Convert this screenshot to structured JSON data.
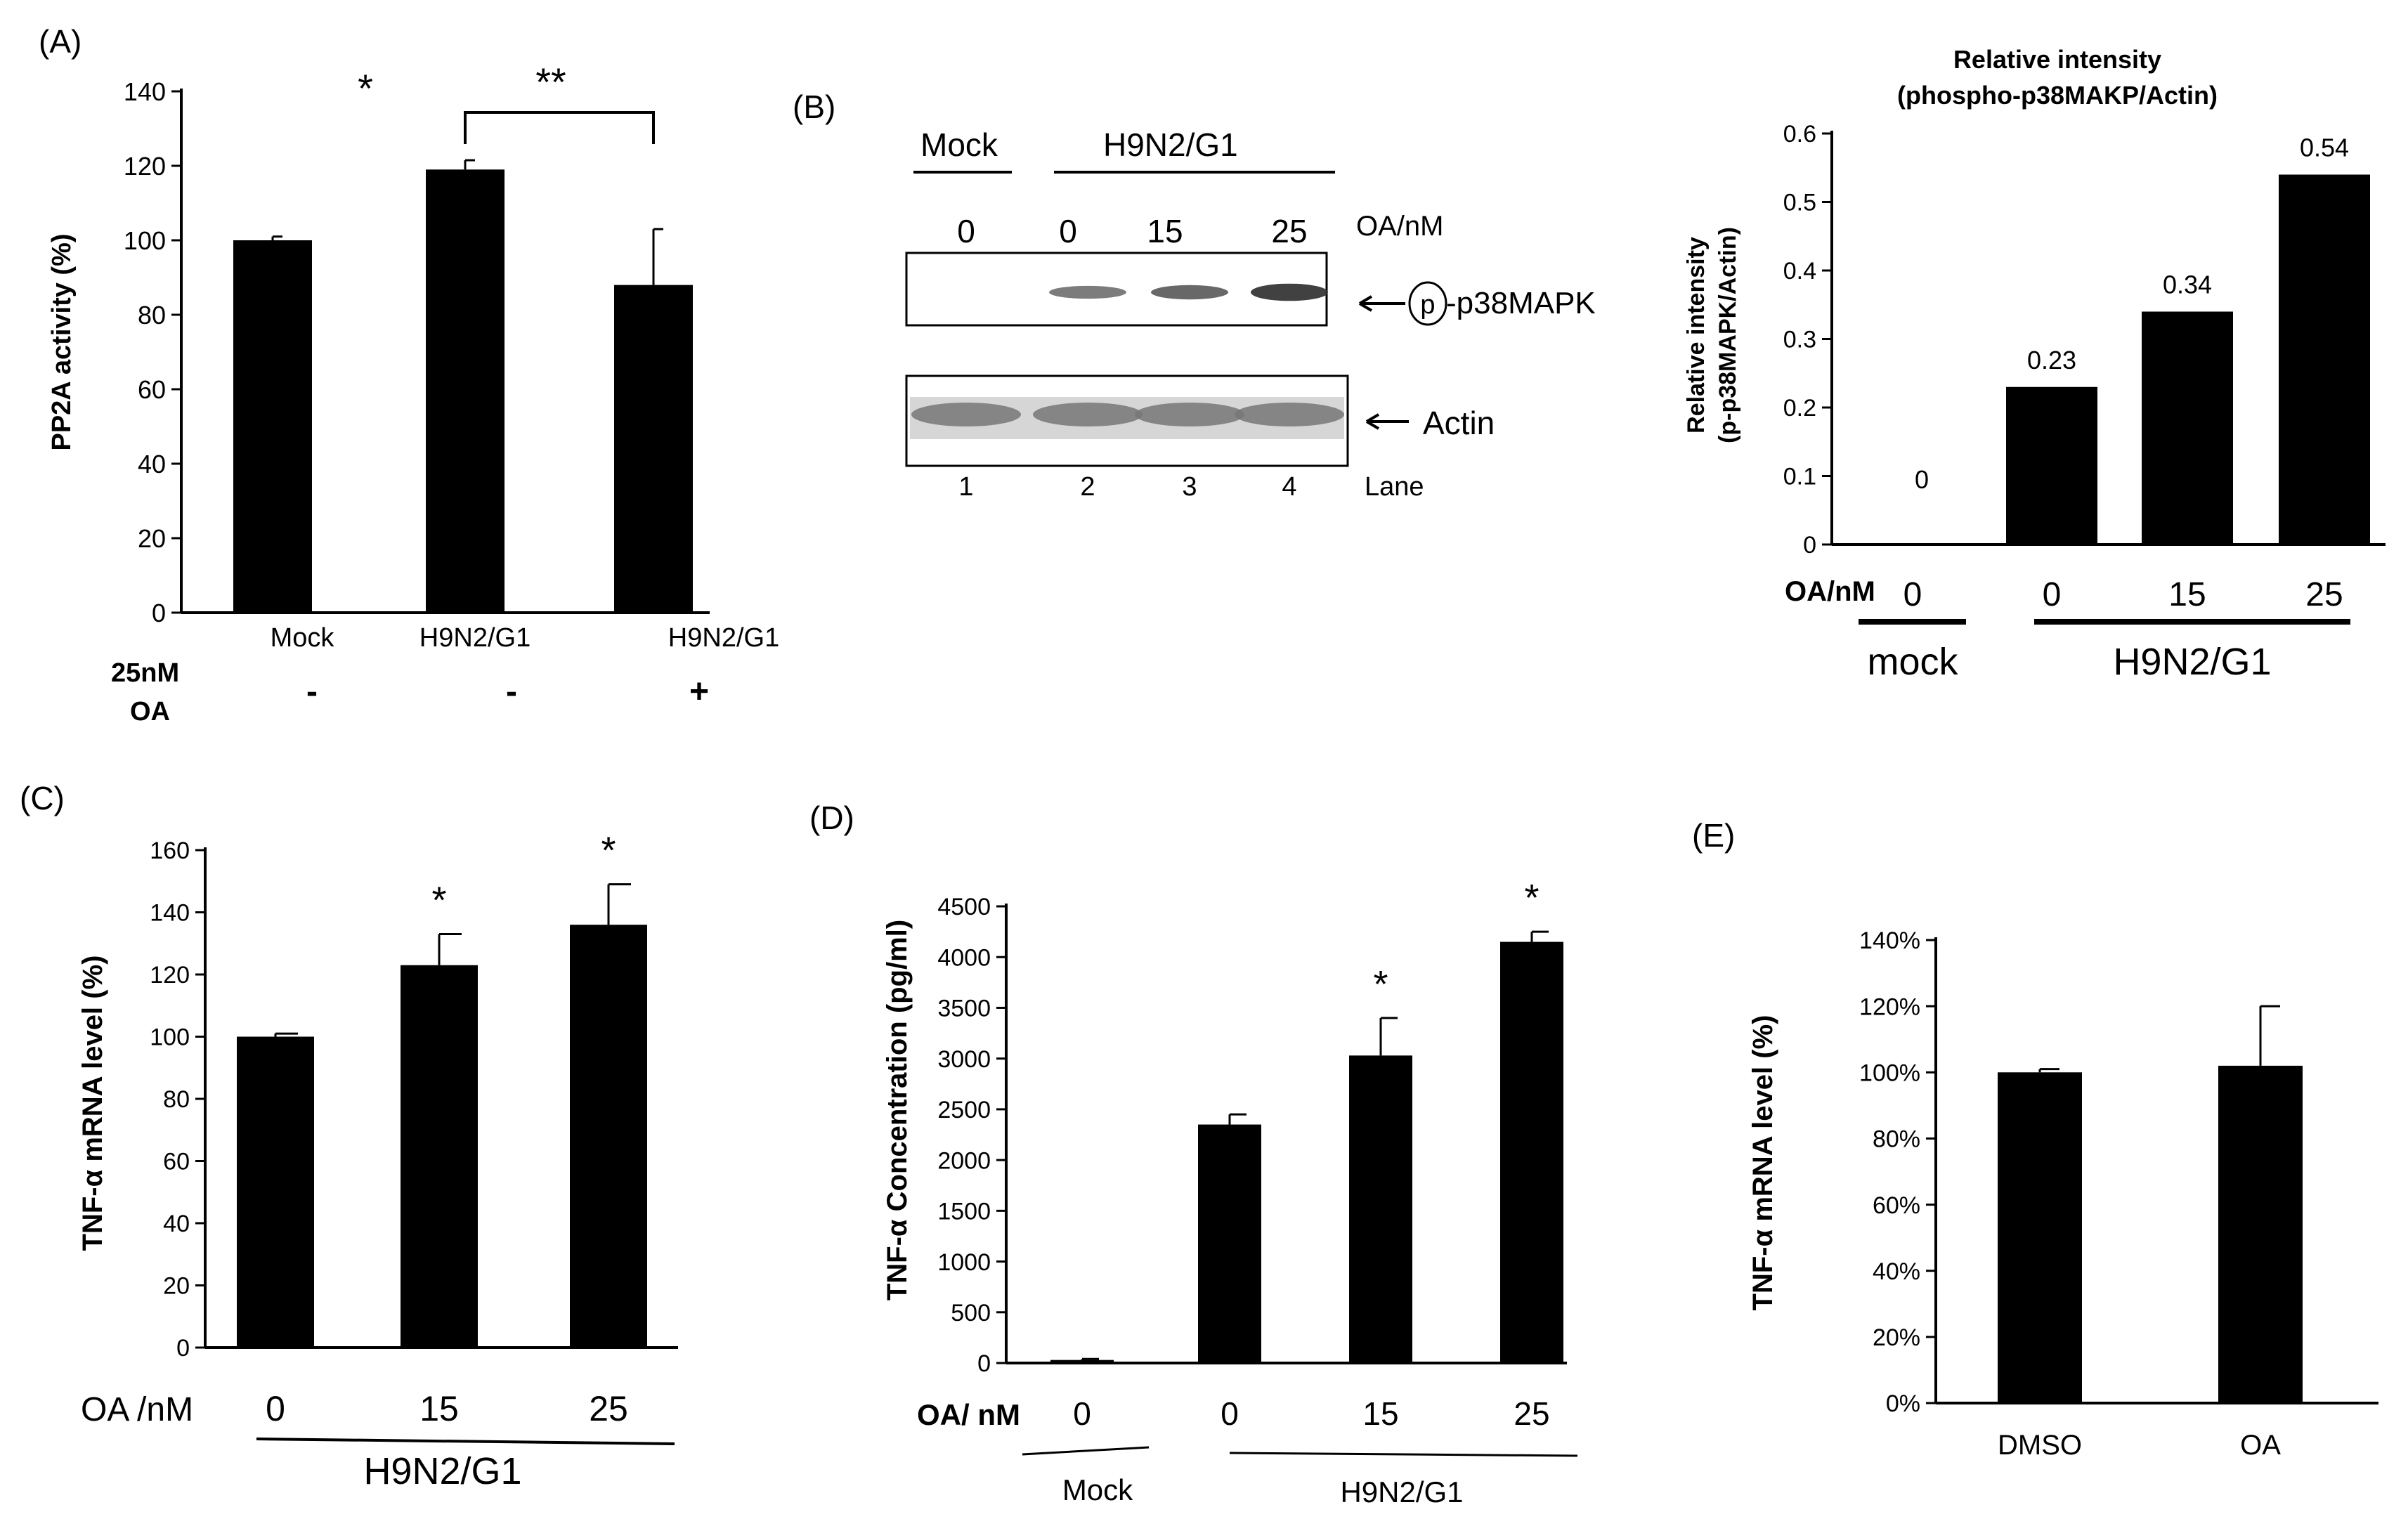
{
  "colors": {
    "bar": "#000000",
    "axis": "#000000",
    "background": "#ffffff",
    "blot_band": "#333333",
    "actin_band": "#777777"
  },
  "chart_data": [
    {
      "id": "A",
      "type": "bar",
      "panel_label": "(A)",
      "categories": [
        "Mock",
        "H9N2/G1",
        "H9N2/G1"
      ],
      "values": [
        100,
        119,
        88
      ],
      "errors": [
        1,
        2.5,
        15
      ],
      "ylabel": "PP2A activity (%)",
      "ylim": [
        0,
        140
      ],
      "yticks": [
        0,
        20,
        40,
        60,
        80,
        100,
        120,
        140
      ],
      "condition_label_1": "25nM",
      "condition_label_2": "OA",
      "condition_signs": [
        "-",
        "-",
        "+"
      ],
      "sig_single": "*",
      "sig_double": "**",
      "grid": false,
      "legend": "none"
    },
    {
      "id": "B",
      "type": "bar",
      "panel_label": "(B)",
      "title_line1": "Relative intensity",
      "title_line2": "(phospho-p38MAKP/Actin)",
      "ylabel_line1": "Relative intensity",
      "ylabel_line2": "(p-p38MAPK/Actin)",
      "categories": [
        "0",
        "0",
        "15",
        "25"
      ],
      "values": [
        0,
        0.23,
        0.34,
        0.54
      ],
      "data_labels": [
        "0",
        "0.23",
        "0.34",
        "0.54"
      ],
      "ylim": [
        0,
        0.6
      ],
      "yticks": [
        "0",
        "0.1",
        "0.2",
        "0.3",
        "0.4",
        "0.5",
        "0.6"
      ],
      "xlabel": "OA/nM",
      "group_mock": "mock",
      "group_virus": "H9N2/G1",
      "grid": false,
      "legend": "none"
    },
    {
      "id": "C",
      "type": "bar",
      "panel_label": "(C)",
      "categories": [
        "0",
        "15",
        "25"
      ],
      "values": [
        100,
        123,
        136
      ],
      "errors": [
        1,
        10,
        13
      ],
      "ylabel": "TNF-α mRNA level (%)",
      "ylim": [
        0,
        160
      ],
      "yticks": [
        0,
        20,
        40,
        60,
        80,
        100,
        120,
        140,
        160
      ],
      "xlabel": "OA /nM",
      "group_virus": "H9N2/G1",
      "significance": [
        "",
        "*",
        "*"
      ],
      "grid": false,
      "legend": "none"
    },
    {
      "id": "D",
      "type": "bar",
      "panel_label": "(D)",
      "categories": [
        "0",
        "0",
        "15",
        "25"
      ],
      "values": [
        30,
        2350,
        3030,
        4150
      ],
      "errors": [
        10,
        100,
        370,
        100
      ],
      "ylabel": "TNF-α Concentration (pg/ml)",
      "ylim": [
        0,
        4500
      ],
      "yticks": [
        0,
        500,
        1000,
        1500,
        2000,
        2500,
        3000,
        3500,
        4000,
        4500
      ],
      "xlabel": "OA/ nM",
      "group_mock": "Mock",
      "group_virus": "H9N2/G1",
      "significance": [
        "",
        "",
        "*",
        "*"
      ],
      "grid": false,
      "legend": "none"
    },
    {
      "id": "E",
      "type": "bar",
      "panel_label": "(E)",
      "categories": [
        "DMSO",
        "OA"
      ],
      "values": [
        100,
        102
      ],
      "errors": [
        1,
        18
      ],
      "ylabel": "TNF-α mRNA level (%)",
      "ylim": [
        0,
        140
      ],
      "yticks": [
        "0%",
        "20%",
        "40%",
        "60%",
        "80%",
        "100%",
        "120%",
        "140%"
      ],
      "grid": false,
      "legend": "none"
    }
  ],
  "blot": {
    "group_mock": "Mock",
    "group_virus": "H9N2/G1",
    "oa_values": [
      "0",
      "0",
      "15",
      "25"
    ],
    "oa_label": "OA/nM",
    "phospho_marker": "p",
    "phospho_label": "-p38MAPK",
    "actin_label": "Actin",
    "lanes": [
      "1",
      "2",
      "3",
      "4"
    ],
    "lane_label": "Lane",
    "phospho_band_intensity": [
      0,
      0.45,
      0.6,
      0.9
    ]
  }
}
